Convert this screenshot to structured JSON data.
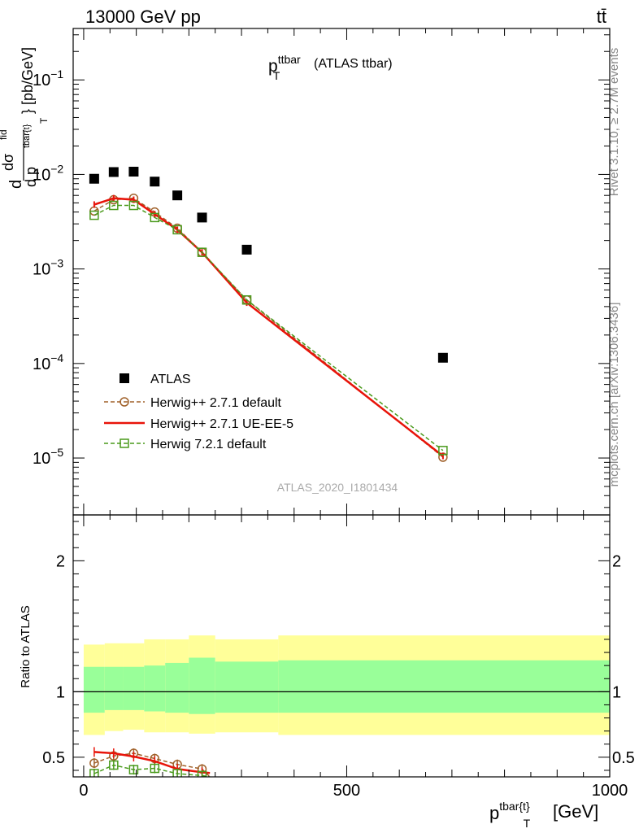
{
  "header": {
    "left": "13000 GeV pp",
    "right": "tt̄"
  },
  "side_labels": {
    "rivet": "Rivet 3.1.10, ≥ 2.7M events",
    "mcplots": "mcplots.cern.ch [arXiv:1306.3436]"
  },
  "chart_data": [
    {
      "type": "scatter",
      "panel": "main",
      "title_main": "p",
      "title_sup": "ttbar",
      "title_sub": "T",
      "title_rest": "(ATLAS ttbar)",
      "watermark": "ATLAS_2020_I1801434",
      "ylabel": "d σ^fid / d p_T^tbar{t} [pb/GeV]",
      "ylabel_parts": {
        "d": "d",
        "sigma": "dσ",
        "fid": "fid",
        "den": "d p",
        "tbar": "tbar{t}",
        "T": "T",
        "unit": "} [pb/GeV]"
      },
      "yscale": "log",
      "ylim": [
        2.5e-06,
        0.35
      ],
      "xlim": [
        -20,
        1000
      ],
      "yticks": [
        {
          "value": 0.1,
          "label": "10",
          "exp": "−1"
        },
        {
          "value": 0.01,
          "label": "10",
          "exp": "−2"
        },
        {
          "value": 0.001,
          "label": "10",
          "exp": "−3"
        },
        {
          "value": 0.0001,
          "label": "10",
          "exp": "−4"
        },
        {
          "value": 1e-05,
          "label": "10",
          "exp": "−5"
        }
      ],
      "legend_position": "bottom-left",
      "series": [
        {
          "name": "ATLAS",
          "style": "square-marker",
          "color": "#000000",
          "x": [
            20,
            57,
            95,
            135,
            178,
            225,
            310,
            683
          ],
          "y": [
            0.009,
            0.0106,
            0.0107,
            0.0084,
            0.006,
            0.0035,
            0.0016,
            0.000115
          ]
        },
        {
          "name": "Herwig++ 2.7.1 default",
          "style": "dashed-circle",
          "color": "#a0612a",
          "x": [
            20,
            57,
            95,
            135,
            178,
            225,
            310,
            683
          ],
          "y": [
            0.0041,
            0.0054,
            0.0056,
            0.004,
            0.0027,
            0.0015,
            0.00047,
            1.02e-05
          ]
        },
        {
          "name": "Herwig++ 2.7.1 UE-EE-5",
          "style": "solid-line",
          "color": "#e8140a",
          "x": [
            20,
            57,
            95,
            135,
            178,
            225,
            310,
            683
          ],
          "y": [
            0.0048,
            0.0056,
            0.0054,
            0.0038,
            0.0026,
            0.0015,
            0.00044,
            1.05e-05
          ]
        },
        {
          "name": "Herwig 7.2.1 default",
          "style": "dashed-square",
          "color": "#4a9a1c",
          "x": [
            20,
            57,
            95,
            135,
            178,
            225,
            310,
            683
          ],
          "y": [
            0.0037,
            0.0047,
            0.0047,
            0.0035,
            0.0026,
            0.0015,
            0.00047,
            1.2e-05
          ]
        }
      ]
    },
    {
      "type": "line",
      "panel": "ratio",
      "ylabel": "Ratio to ATLAS",
      "xlabel_main": "p",
      "xlabel_sup": "tbar{t}",
      "xlabel_sub": "T",
      "xlabel_unit": "[GeV]",
      "xlim": [
        -20,
        1000
      ],
      "ylim": [
        0.35,
        2.35
      ],
      "xticks": [
        {
          "value": 0,
          "label": "0"
        },
        {
          "value": 500,
          "label": "500"
        },
        {
          "value": 1000,
          "label": "1000"
        }
      ],
      "yticks": [
        {
          "value": 0.5,
          "label": "0.5"
        },
        {
          "value": 1,
          "label": "1"
        },
        {
          "value": 2,
          "label": "2"
        }
      ],
      "bands": {
        "bin_edges": [
          0,
          40,
          75,
          115,
          155,
          200,
          250,
          370,
          1000
        ],
        "yellow_low": [
          0.67,
          0.7,
          0.71,
          0.69,
          0.69,
          0.68,
          0.69,
          0.67
        ],
        "yellow_high": [
          1.36,
          1.37,
          1.37,
          1.4,
          1.4,
          1.43,
          1.4,
          1.43
        ],
        "green_low": [
          0.84,
          0.86,
          0.86,
          0.85,
          0.84,
          0.83,
          0.84,
          0.84
        ],
        "green_high": [
          1.19,
          1.19,
          1.19,
          1.2,
          1.22,
          1.26,
          1.23,
          1.24
        ]
      },
      "series": [
        {
          "name": "Herwig++ 2.7.1 default",
          "color": "#a0612a",
          "x": [
            20,
            57,
            95,
            135,
            178,
            225,
            240
          ],
          "y": [
            0.455,
            0.51,
            0.53,
            0.49,
            0.445,
            0.41,
            0.35
          ]
        },
        {
          "name": "Herwig++ 2.7.1 UE-EE-5",
          "color": "#e8140a",
          "x": [
            20,
            57,
            95,
            135,
            178,
            225,
            240
          ],
          "y": [
            0.54,
            0.53,
            0.505,
            0.47,
            0.41,
            0.385,
            0.38
          ]
        },
        {
          "name": "Herwig 7.2.1 default",
          "color": "#4a9a1c",
          "x": [
            20,
            57,
            95,
            135,
            178,
            225,
            240
          ],
          "y": [
            0.375,
            0.44,
            0.405,
            0.415,
            0.375,
            0.36,
            0.35
          ]
        }
      ]
    }
  ]
}
